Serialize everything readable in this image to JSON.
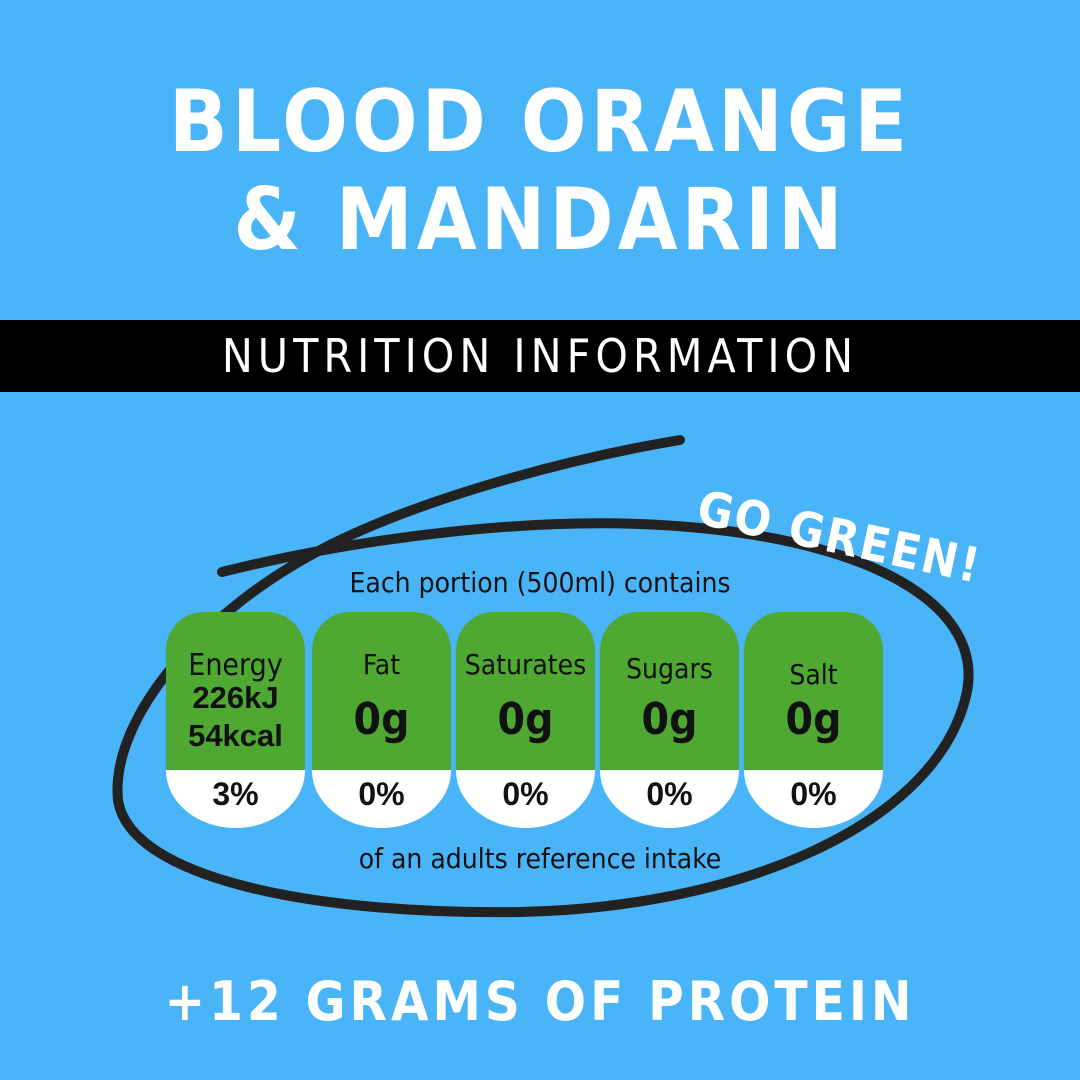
{
  "title": {
    "line1": "BLOOD ORANGE",
    "line2": "& MANDARIN"
  },
  "banner": "NUTRITION INFORMATION",
  "callout": "GO GREEN!",
  "portion_caption": "Each portion (500ml) contains",
  "intake_caption": "of an adults reference intake",
  "nutrients": [
    {
      "label": "Energy",
      "value_kj": "226kJ",
      "value_kcal": "54kcal",
      "percent": "3%"
    },
    {
      "label": "Fat",
      "value": "0g",
      "percent": "0%"
    },
    {
      "label": "Saturates",
      "value": "0g",
      "percent": "0%"
    },
    {
      "label": "Sugars",
      "value": "0g",
      "percent": "0%"
    },
    {
      "label": "Salt",
      "value": "0g",
      "percent": "0%"
    }
  ],
  "protein_line": "+12 GRAMS OF PROTEIN",
  "colors": {
    "background": "#4ab4f8",
    "band": "#000000",
    "green": "#4ea832",
    "white": "#ffffff",
    "ink": "#111111"
  }
}
